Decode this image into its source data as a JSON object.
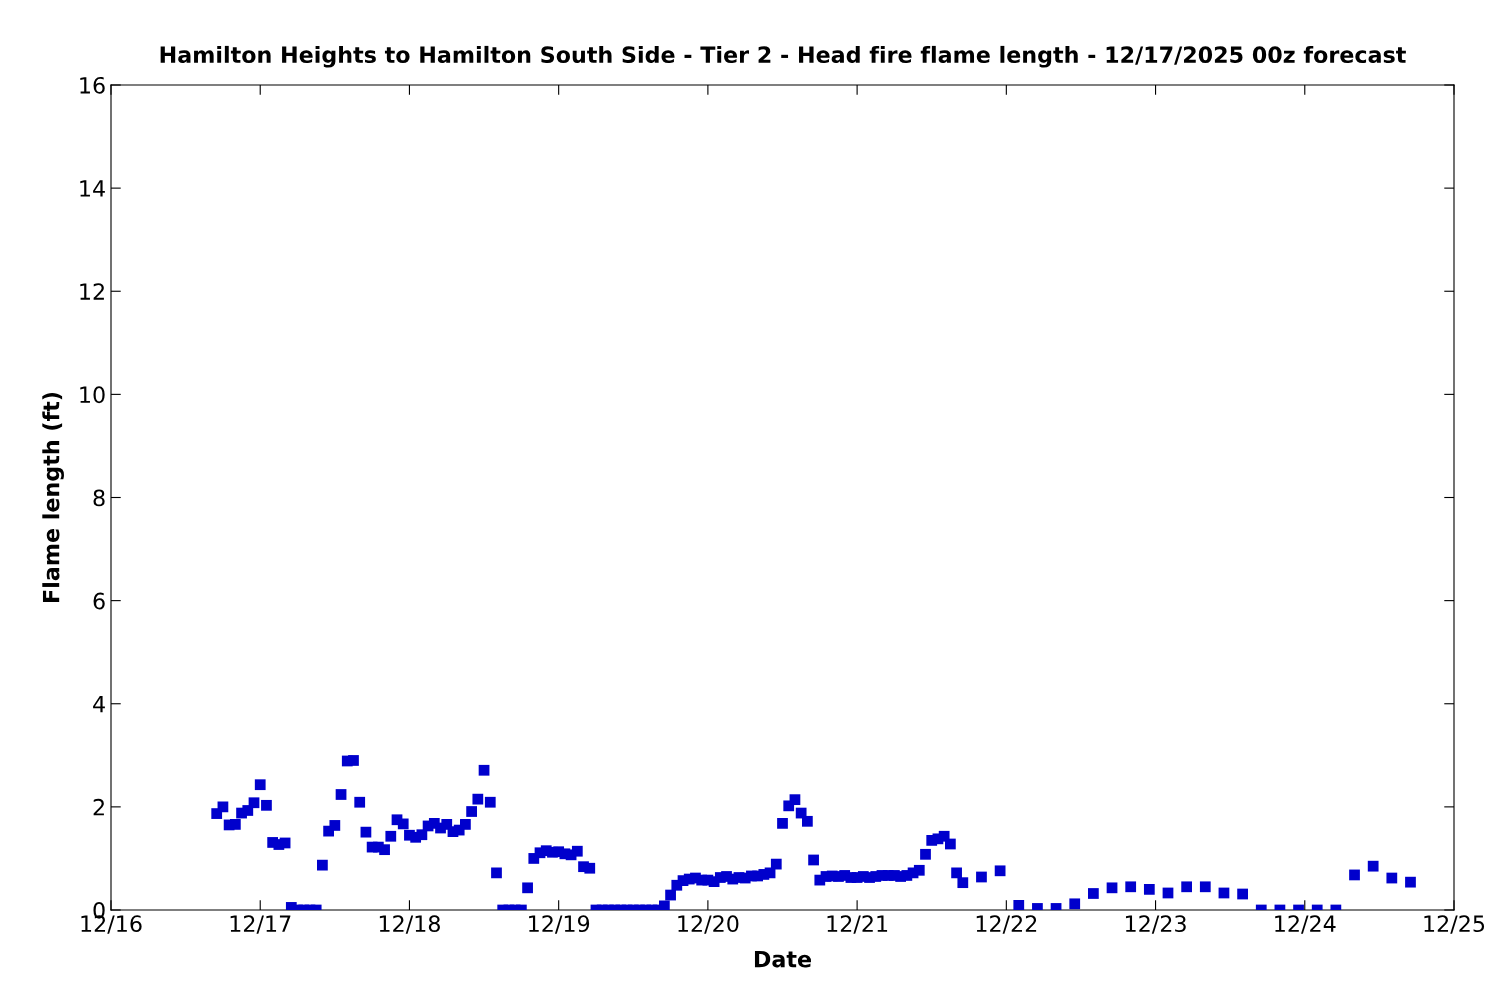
{
  "chart_data": {
    "type": "scatter",
    "title": "Hamilton Heights to Hamilton South Side - Tier 2 - Head fire flame length - 12/17/2025 00z forecast",
    "xlabel": "Date",
    "ylabel": "Flame length (ft)",
    "marker": "square",
    "grid": false,
    "legend": false,
    "xlim": [
      "2025-12-16",
      "2025-12-25"
    ],
    "xticks": [
      {
        "value": "2025-12-16",
        "label": "12/16"
      },
      {
        "value": "2025-12-17",
        "label": "12/17"
      },
      {
        "value": "2025-12-18",
        "label": "12/18"
      },
      {
        "value": "2025-12-19",
        "label": "12/19"
      },
      {
        "value": "2025-12-20",
        "label": "12/20"
      },
      {
        "value": "2025-12-21",
        "label": "12/21"
      },
      {
        "value": "2025-12-22",
        "label": "12/22"
      },
      {
        "value": "2025-12-23",
        "label": "12/23"
      },
      {
        "value": "2025-12-24",
        "label": "12/24"
      },
      {
        "value": "2025-12-25",
        "label": "12/25"
      }
    ],
    "ylim": [
      0,
      16
    ],
    "yticks": [
      0,
      2,
      4,
      6,
      8,
      10,
      12,
      14,
      16
    ],
    "series": [
      {
        "color": "#0000cc",
        "x": [
          "2025-12-16T17:00",
          "2025-12-16T18:00",
          "2025-12-16T19:00",
          "2025-12-16T20:00",
          "2025-12-16T21:00",
          "2025-12-16T22:00",
          "2025-12-16T23:00",
          "2025-12-17T00:00",
          "2025-12-17T01:00",
          "2025-12-17T02:00",
          "2025-12-17T03:00",
          "2025-12-17T04:00",
          "2025-12-17T05:00",
          "2025-12-17T06:00",
          "2025-12-17T07:00",
          "2025-12-17T08:00",
          "2025-12-17T09:00",
          "2025-12-17T10:00",
          "2025-12-17T11:00",
          "2025-12-17T12:00",
          "2025-12-17T13:00",
          "2025-12-17T14:00",
          "2025-12-17T15:00",
          "2025-12-17T16:00",
          "2025-12-17T17:00",
          "2025-12-17T18:00",
          "2025-12-17T19:00",
          "2025-12-17T20:00",
          "2025-12-17T21:00",
          "2025-12-17T22:00",
          "2025-12-17T23:00",
          "2025-12-18T00:00",
          "2025-12-18T01:00",
          "2025-12-18T02:00",
          "2025-12-18T03:00",
          "2025-12-18T04:00",
          "2025-12-18T05:00",
          "2025-12-18T06:00",
          "2025-12-18T07:00",
          "2025-12-18T08:00",
          "2025-12-18T09:00",
          "2025-12-18T10:00",
          "2025-12-18T11:00",
          "2025-12-18T12:00",
          "2025-12-18T13:00",
          "2025-12-18T14:00",
          "2025-12-18T15:00",
          "2025-12-18T16:00",
          "2025-12-18T17:00",
          "2025-12-18T18:00",
          "2025-12-18T19:00",
          "2025-12-18T20:00",
          "2025-12-18T21:00",
          "2025-12-18T22:00",
          "2025-12-18T23:00",
          "2025-12-19T00:00",
          "2025-12-19T01:00",
          "2025-12-19T02:00",
          "2025-12-19T03:00",
          "2025-12-19T04:00",
          "2025-12-19T05:00",
          "2025-12-19T06:00",
          "2025-12-19T07:00",
          "2025-12-19T08:00",
          "2025-12-19T09:00",
          "2025-12-19T10:00",
          "2025-12-19T11:00",
          "2025-12-19T12:00",
          "2025-12-19T13:00",
          "2025-12-19T14:00",
          "2025-12-19T15:00",
          "2025-12-19T16:00",
          "2025-12-19T17:00",
          "2025-12-19T18:00",
          "2025-12-19T19:00",
          "2025-12-19T20:00",
          "2025-12-19T21:00",
          "2025-12-19T22:00",
          "2025-12-19T23:00",
          "2025-12-20T00:00",
          "2025-12-20T01:00",
          "2025-12-20T02:00",
          "2025-12-20T03:00",
          "2025-12-20T04:00",
          "2025-12-20T05:00",
          "2025-12-20T06:00",
          "2025-12-20T07:00",
          "2025-12-20T08:00",
          "2025-12-20T09:00",
          "2025-12-20T10:00",
          "2025-12-20T11:00",
          "2025-12-20T12:00",
          "2025-12-20T13:00",
          "2025-12-20T14:00",
          "2025-12-20T15:00",
          "2025-12-20T16:00",
          "2025-12-20T17:00",
          "2025-12-20T18:00",
          "2025-12-20T19:00",
          "2025-12-20T20:00",
          "2025-12-20T21:00",
          "2025-12-20T22:00",
          "2025-12-20T23:00",
          "2025-12-21T00:00",
          "2025-12-21T01:00",
          "2025-12-21T02:00",
          "2025-12-21T03:00",
          "2025-12-21T04:00",
          "2025-12-21T05:00",
          "2025-12-21T06:00",
          "2025-12-21T07:00",
          "2025-12-21T08:00",
          "2025-12-21T09:00",
          "2025-12-21T10:00",
          "2025-12-21T11:00",
          "2025-12-21T12:00",
          "2025-12-21T13:00",
          "2025-12-21T14:00",
          "2025-12-21T15:00",
          "2025-12-21T16:00",
          "2025-12-21T17:00",
          "2025-12-21T20:00",
          "2025-12-21T23:00",
          "2025-12-22T02:00",
          "2025-12-22T05:00",
          "2025-12-22T08:00",
          "2025-12-22T11:00",
          "2025-12-22T14:00",
          "2025-12-22T17:00",
          "2025-12-22T20:00",
          "2025-12-22T23:00",
          "2025-12-23T02:00",
          "2025-12-23T05:00",
          "2025-12-23T08:00",
          "2025-12-23T11:00",
          "2025-12-23T14:00",
          "2025-12-23T17:00",
          "2025-12-23T20:00",
          "2025-12-23T23:00",
          "2025-12-24T02:00",
          "2025-12-24T05:00",
          "2025-12-24T08:00",
          "2025-12-24T11:00",
          "2025-12-24T14:00",
          "2025-12-24T17:00"
        ],
        "values": [
          1.87,
          2.0,
          1.65,
          1.66,
          1.88,
          1.93,
          2.08,
          2.43,
          2.03,
          1.31,
          1.27,
          1.3,
          0.05,
          0,
          0,
          0,
          0,
          0.87,
          1.53,
          1.64,
          2.24,
          2.89,
          2.9,
          2.09,
          1.51,
          1.22,
          1.22,
          1.17,
          1.43,
          1.75,
          1.67,
          1.45,
          1.41,
          1.46,
          1.63,
          1.68,
          1.59,
          1.66,
          1.52,
          1.55,
          1.66,
          1.91,
          2.15,
          2.71,
          2.09,
          0.72,
          0,
          0,
          0,
          0,
          0.43,
          1.0,
          1.11,
          1.15,
          1.12,
          1.13,
          1.09,
          1.07,
          1.14,
          0.84,
          0.81,
          0,
          0,
          0,
          0,
          0,
          0,
          0,
          0,
          0,
          0,
          0,
          0.08,
          0.29,
          0.48,
          0.57,
          0.6,
          0.62,
          0.58,
          0.58,
          0.55,
          0.63,
          0.65,
          0.6,
          0.63,
          0.62,
          0.66,
          0.66,
          0.69,
          0.72,
          0.89,
          1.68,
          2.02,
          2.14,
          1.88,
          1.72,
          0.97,
          0.58,
          0.65,
          0.66,
          0.65,
          0.67,
          0.63,
          0.63,
          0.65,
          0.63,
          0.65,
          0.67,
          0.67,
          0.67,
          0.65,
          0.67,
          0.72,
          0.77,
          1.08,
          1.35,
          1.38,
          1.43,
          1.28,
          0.72,
          0.53,
          0.64,
          0.76,
          0.09,
          0.03,
          0.03,
          0.12,
          0.32,
          0.43,
          0.45,
          0.4,
          0.33,
          0.45,
          0.45,
          0.33,
          0.31,
          0,
          0,
          0,
          0,
          0,
          0.68,
          0.85,
          0.62,
          0.54
        ]
      }
    ]
  }
}
